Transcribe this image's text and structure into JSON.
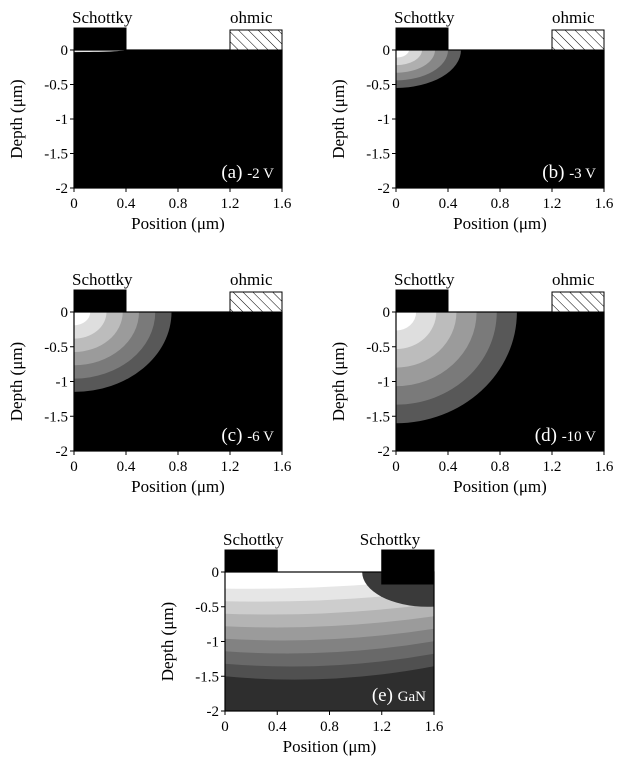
{
  "chart_data": [
    {
      "type": "heatmap",
      "panel": "(a)",
      "condition": "-2 V",
      "xlabel": "Position (μm)",
      "ylabel": "Depth (μm)",
      "xticks": [
        "0",
        "0.4",
        "0.8",
        "1.2",
        "1.6"
      ],
      "yticks": [
        "0",
        "-0.5",
        "-1",
        "-1.5",
        "-2"
      ],
      "xlim": [
        0,
        1.6
      ],
      "ylim": [
        -2,
        0
      ],
      "left_contact": {
        "label": "Schottky",
        "x": [
          0,
          0.4
        ],
        "fill": "black"
      },
      "right_contact": {
        "label": "ohmic",
        "x": [
          1.2,
          1.6
        ],
        "fill": "hatched"
      },
      "depletion_extent_um": {
        "x": 0.4,
        "depth": 0.03
      },
      "levels": 1
    },
    {
      "type": "heatmap",
      "panel": "(b)",
      "condition": "-3 V",
      "xlabel": "Position (μm)",
      "ylabel": "Depth (μm)",
      "xticks": [
        "0",
        "0.4",
        "0.8",
        "1.2",
        "1.6"
      ],
      "yticks": [
        "0",
        "-0.5",
        "-1",
        "-1.5",
        "-2"
      ],
      "xlim": [
        0,
        1.6
      ],
      "ylim": [
        -2,
        0
      ],
      "left_contact": {
        "label": "Schottky",
        "x": [
          0,
          0.4
        ],
        "fill": "black"
      },
      "right_contact": {
        "label": "ohmic",
        "x": [
          1.2,
          1.6
        ],
        "fill": "hatched"
      },
      "depletion_extent_um": {
        "x": 0.5,
        "depth": 0.55
      },
      "levels": 5
    },
    {
      "type": "heatmap",
      "panel": "(c)",
      "condition": "-6 V",
      "xlabel": "Position (μm)",
      "ylabel": "Depth (μm)",
      "xticks": [
        "0",
        "0.4",
        "0.8",
        "1.2",
        "1.6"
      ],
      "yticks": [
        "0",
        "-0.5",
        "-1",
        "-1.5",
        "-2"
      ],
      "xlim": [
        0,
        1.6
      ],
      "ylim": [
        -2,
        0
      ],
      "left_contact": {
        "label": "Schottky",
        "x": [
          0,
          0.4
        ],
        "fill": "black"
      },
      "right_contact": {
        "label": "ohmic",
        "x": [
          1.2,
          1.6
        ],
        "fill": "hatched"
      },
      "depletion_extent_um": {
        "x": 0.75,
        "depth": 1.15
      },
      "levels": 6
    },
    {
      "type": "heatmap",
      "panel": "(d)",
      "condition": "-10 V",
      "xlabel": "Position (μm)",
      "ylabel": "Depth (μm)",
      "xticks": [
        "0",
        "0.4",
        "0.8",
        "1.2",
        "1.6"
      ],
      "yticks": [
        "0",
        "-0.5",
        "-1",
        "-1.5",
        "-2"
      ],
      "xlim": [
        0,
        1.6
      ],
      "ylim": [
        -2,
        0
      ],
      "left_contact": {
        "label": "Schottky",
        "x": [
          0,
          0.4
        ],
        "fill": "black"
      },
      "right_contact": {
        "label": "ohmic",
        "x": [
          1.2,
          1.6
        ],
        "fill": "hatched"
      },
      "depletion_extent_um": {
        "x": 0.93,
        "depth": 1.6
      },
      "levels": 6
    },
    {
      "type": "heatmap",
      "panel": "(e)",
      "condition": "GaN",
      "xlabel": "Position (μm)",
      "ylabel": "Depth (μm)",
      "xticks": [
        "0",
        "0.4",
        "0.8",
        "1.2",
        "1.6"
      ],
      "yticks": [
        "0",
        "-0.5",
        "-1",
        "-1.5",
        "-2"
      ],
      "xlim": [
        0,
        1.6
      ],
      "ylim": [
        -2,
        0
      ],
      "left_contact": {
        "label": "Schottky",
        "x": [
          0,
          0.4
        ],
        "fill": "black"
      },
      "right_contact": {
        "label": "Schottky",
        "x": [
          1.2,
          1.6
        ],
        "fill": "black"
      },
      "levels": 8
    }
  ]
}
